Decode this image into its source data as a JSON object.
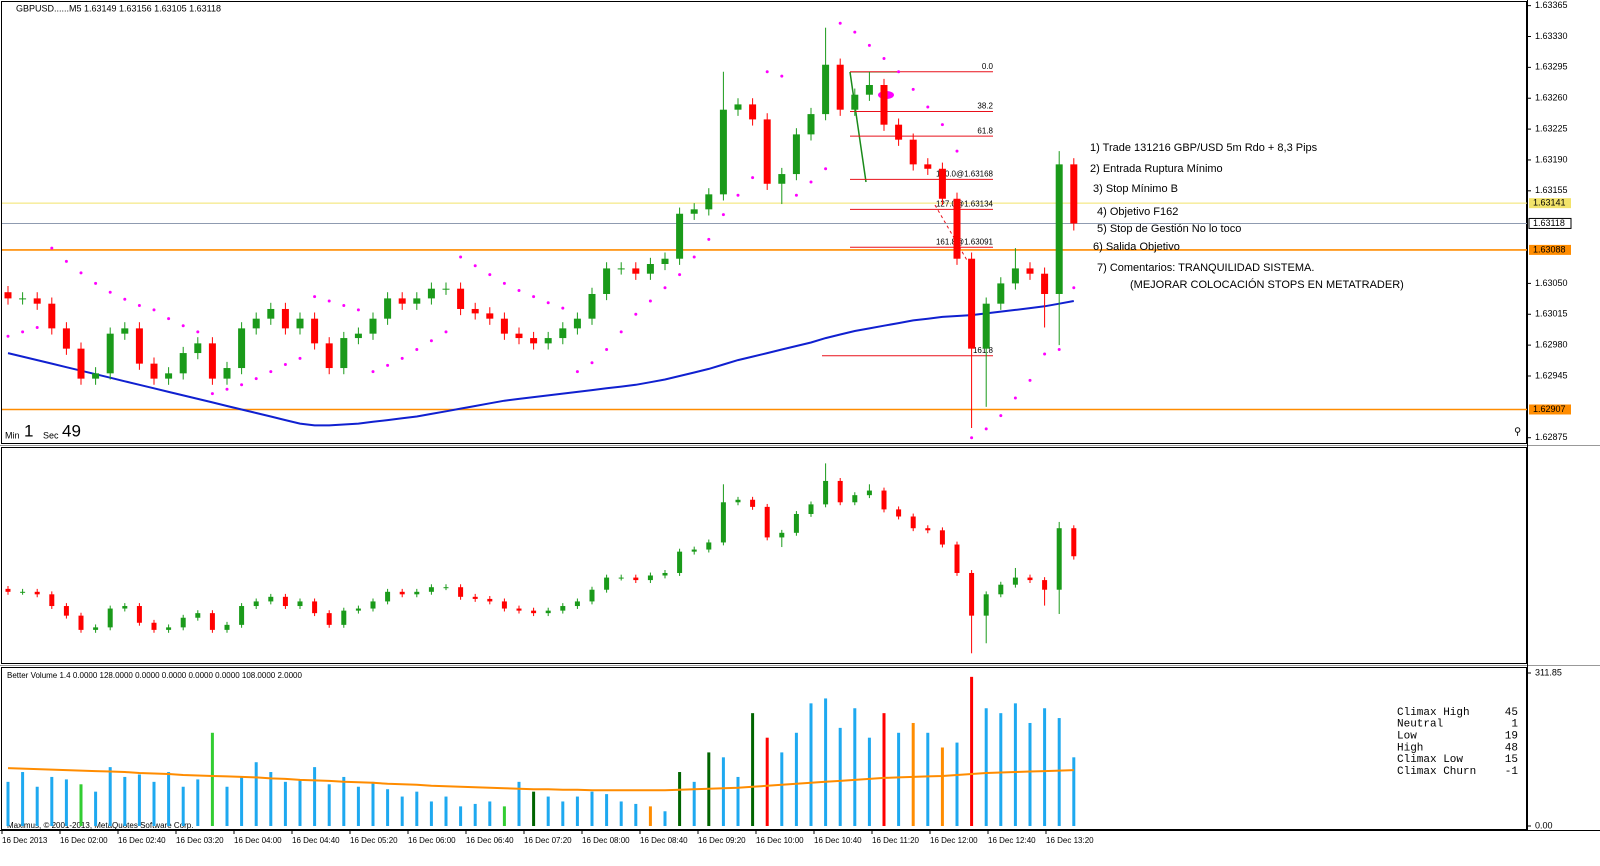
{
  "chart_data": {
    "type": "candlestick",
    "symbol_header": "GBPUSD......M5  1.63149 1.63156 1.63105 1.63118",
    "timer": {
      "min_label": "Min",
      "min": 1,
      "sec_label": "Sec",
      "sec": 49
    },
    "x_labels": [
      "16 Dec 2013",
      "16 Dec 02:00",
      "16 Dec 02:40",
      "16 Dec 03:20",
      "16 Dec 04:00",
      "16 Dec 04:40",
      "16 Dec 05:20",
      "16 Dec 06:00",
      "16 Dec 06:40",
      "16 Dec 07:20",
      "16 Dec 08:00",
      "16 Dec 08:40",
      "16 Dec 09:20",
      "16 Dec 10:00",
      "16 Dec 10:40",
      "16 Dec 11:20",
      "16 Dec 12:00",
      "16 Dec 12:40",
      "16 Dec 13:20"
    ],
    "ylim": [
      1.62869,
      1.63368
    ],
    "yticks": [
      1.63365,
      {
        "value": 1.6333,
        "label": "1.63330"
      },
      1.63295,
      {
        "value": 1.6326,
        "label": "1.63260"
      },
      1.63225,
      {
        "value": 1.6319,
        "label": "1.63190"
      },
      1.63155,
      {
        "value": 1.6305,
        "label": "1.63050"
      },
      1.63015,
      {
        "value": 1.6298,
        "label": "1.62980"
      },
      1.62945,
      1.62875
    ],
    "up_color": "#1a9a1a",
    "down_color": "#ff0000",
    "open": [
      1.6304,
      1.63033,
      1.63033,
      1.63027,
      1.62999,
      1.62976,
      1.62942,
      1.62948,
      1.62993,
      1.62999,
      1.62959,
      1.62942,
      1.62948,
      1.62971,
      1.62982,
      1.62942,
      1.62954,
      1.62999,
      1.6301,
      1.63021,
      1.62999,
      1.6301,
      1.62982,
      1.62954,
      1.62988,
      1.62993,
      1.6301,
      1.63033,
      1.63027,
      1.63033,
      1.63044,
      1.63044,
      1.63021,
      1.63016,
      1.6301,
      1.62993,
      1.62988,
      1.62982,
      1.62988,
      1.62999,
      1.6301,
      1.63038,
      1.63067,
      1.63067,
      1.63061,
      1.63072,
      1.63078,
      1.63129,
      1.63134,
      1.63151,
      1.63247,
      1.63253,
      1.63236,
      1.63163,
      1.63174,
      1.63219,
      1.63242,
      1.63298,
      1.63247,
      1.63264,
      1.63275,
      1.6323,
      1.63213,
      1.63185,
      1.6318,
      1.63146,
      1.63078,
      1.62976,
      1.63027,
      1.6305,
      1.63067,
      1.63061,
      1.63038,
      1.63185
    ],
    "high": [
      1.63047,
      1.6304,
      1.6304,
      1.63034,
      1.63006,
      1.62983,
      1.62955,
      1.63,
      1.63006,
      1.63006,
      1.62966,
      1.62955,
      1.62978,
      1.62989,
      1.62989,
      1.62961,
      1.63006,
      1.63017,
      1.63028,
      1.63028,
      1.63017,
      1.63017,
      1.62989,
      1.62995,
      1.63,
      1.63017,
      1.6304,
      1.6304,
      1.6304,
      1.63051,
      1.63051,
      1.63051,
      1.63028,
      1.63023,
      1.63017,
      1.63,
      1.62995,
      1.62995,
      1.63006,
      1.63017,
      1.63045,
      1.63074,
      1.63074,
      1.63074,
      1.63079,
      1.63085,
      1.63136,
      1.63141,
      1.63158,
      1.6329,
      1.6326,
      1.6326,
      1.63243,
      1.63181,
      1.63226,
      1.63249,
      1.6334,
      1.63305,
      1.63271,
      1.6329,
      1.63282,
      1.63237,
      1.6322,
      1.63192,
      1.63187,
      1.63153,
      1.63085,
      1.63034,
      1.63057,
      1.6309,
      1.63074,
      1.63068,
      1.632,
      1.63192
    ],
    "low": [
      1.63026,
      1.63026,
      1.6302,
      1.62992,
      1.62969,
      1.62935,
      1.62935,
      1.62941,
      1.62986,
      1.62952,
      1.62935,
      1.62935,
      1.62941,
      1.62964,
      1.62935,
      1.62935,
      1.62947,
      1.62992,
      1.63003,
      1.62992,
      1.62992,
      1.62975,
      1.62947,
      1.62947,
      1.62981,
      1.62986,
      1.63003,
      1.6302,
      1.6302,
      1.63026,
      1.63037,
      1.63014,
      1.63009,
      1.63003,
      1.62986,
      1.62981,
      1.62975,
      1.62975,
      1.62981,
      1.62992,
      1.63003,
      1.63031,
      1.6306,
      1.63054,
      1.63054,
      1.63065,
      1.63071,
      1.63122,
      1.63127,
      1.63144,
      1.6324,
      1.63229,
      1.63156,
      1.6314,
      1.63167,
      1.63212,
      1.63235,
      1.6324,
      1.6324,
      1.63257,
      1.63223,
      1.63206,
      1.63178,
      1.63173,
      1.63139,
      1.63071,
      1.62886,
      1.6291,
      1.6302,
      1.63043,
      1.63054,
      1.63,
      1.6298,
      1.6311
    ],
    "close": [
      1.63033,
      1.63033,
      1.63027,
      1.62999,
      1.62976,
      1.62942,
      1.62948,
      1.62993,
      1.62999,
      1.62959,
      1.62942,
      1.62948,
      1.62971,
      1.62982,
      1.62942,
      1.62954,
      1.62999,
      1.6301,
      1.63021,
      1.62999,
      1.6301,
      1.62982,
      1.62954,
      1.62988,
      1.62993,
      1.6301,
      1.63033,
      1.63027,
      1.63033,
      1.63044,
      1.63044,
      1.63021,
      1.63016,
      1.6301,
      1.62993,
      1.62988,
      1.62982,
      1.62988,
      1.62999,
      1.6301,
      1.63038,
      1.63067,
      1.63067,
      1.63061,
      1.63072,
      1.63078,
      1.63129,
      1.63134,
      1.63151,
      1.63247,
      1.63253,
      1.63236,
      1.63163,
      1.63174,
      1.63219,
      1.63242,
      1.63298,
      1.63247,
      1.63264,
      1.63275,
      1.6323,
      1.63213,
      1.63185,
      1.6318,
      1.63146,
      1.63078,
      1.62976,
      1.63027,
      1.6305,
      1.63067,
      1.63061,
      1.63038,
      1.63185,
      1.63118
    ],
    "ma": {
      "color": "#1020d0",
      "values": [
        1.62971,
        1.62967,
        1.62963,
        1.62959,
        1.62955,
        1.62951,
        1.62947,
        1.62943,
        1.62939,
        1.62935,
        1.62931,
        1.62927,
        1.62923,
        1.62919,
        1.62915,
        1.62911,
        1.62907,
        1.62903,
        1.62899,
        1.62895,
        1.62891,
        1.62889,
        1.62889,
        1.6289,
        1.62891,
        1.62893,
        1.62895,
        1.62897,
        1.62899,
        1.62902,
        1.62905,
        1.62908,
        1.62911,
        1.62914,
        1.62917,
        1.62919,
        1.62921,
        1.62923,
        1.62925,
        1.62927,
        1.62929,
        1.62931,
        1.62933,
        1.62935,
        1.62938,
        1.62941,
        1.62945,
        1.62949,
        1.62953,
        1.62958,
        1.62963,
        1.62967,
        1.62971,
        1.62975,
        1.62979,
        1.62983,
        1.62988,
        1.62992,
        1.62996,
        1.62999,
        1.63002,
        1.63005,
        1.63008,
        1.6301,
        1.63012,
        1.63013,
        1.63014,
        1.63016,
        1.63018,
        1.6302,
        1.63022,
        1.63024,
        1.63027,
        1.6303
      ]
    },
    "sar": {
      "color": "#ff00ff",
      "values": [
        1.6299,
        1.62995,
        1.63,
        1.6309,
        1.63075,
        1.63062,
        1.6305,
        1.6304,
        1.63032,
        1.63025,
        1.6302,
        1.6301,
        1.63002,
        1.62995,
        1.62925,
        1.6293,
        1.62935,
        1.62942,
        1.6295,
        1.62958,
        1.62965,
        1.63035,
        1.6303,
        1.63025,
        1.6302,
        1.6295,
        1.62957,
        1.62965,
        1.62975,
        1.62985,
        1.62995,
        1.6308,
        1.6307,
        1.6306,
        1.6305,
        1.63042,
        1.63035,
        1.63028,
        1.63022,
        1.6295,
        1.6296,
        1.62975,
        1.62995,
        1.63015,
        1.6303,
        1.63045,
        1.6306,
        1.6308,
        1.631,
        1.63128,
        1.6315,
        1.6317,
        1.6329,
        1.63285,
        1.6315,
        1.63165,
        1.6318,
        1.63345,
        1.63335,
        1.6332,
        1.63305,
        1.6329,
        1.6327,
        1.6325,
        1.6323,
        1.632,
        1.62875,
        1.62885,
        1.629,
        1.6292,
        1.6294,
        1.6297,
        1.62975,
        1.63045
      ]
    },
    "levels": [
      {
        "value": 1.63141,
        "color": "#f2e36a"
      },
      {
        "value": 1.63118,
        "color": "#8f9bb0"
      },
      {
        "value": 1.63088,
        "color": "#ff8c00"
      },
      {
        "value": 1.62907,
        "color": "#ff8c00"
      }
    ],
    "fib": {
      "color": "#e8101a",
      "lines": [
        {
          "label": "0.0",
          "price": 1.6329
        },
        {
          "label": "38.2",
          "price": 1.63245
        },
        {
          "label": "61.8",
          "price": 1.63217
        },
        {
          "label": "100.0@1.63168",
          "price": 1.63168
        },
        {
          "label": "127.0@1.63134",
          "price": 1.63134
        },
        {
          "label": "161.8@1.63091",
          "price": 1.63091
        },
        {
          "label": "161.8",
          "price": 1.62968
        }
      ]
    },
    "annotations": {
      "color": "#1428d8",
      "lines": [
        "1) Trade 131216 GBP/USD 5m Rdo + 8,3 Pips",
        "2) Entrada Ruptura Mínimo",
        "3) Stop Mínimo B",
        "4) Objetivo F162",
        "5) Stop de Gestión No lo toco",
        "6) Salida Objetivo",
        "7) Comentarios: TRANQUILIDAD SISTEMA.",
        "(MEJORAR COLOCACIÓN STOPS EN METATRADER)"
      ]
    },
    "panel2_ylim": [
      1.6287,
      1.6336
    ],
    "volume": {
      "title": "Better Volume 1.4 0.0000 128.0000 0.0000 0.0000 0.0000 0.0000 108.0000 2.0000",
      "ylim": [
        0,
        311.85
      ],
      "yticks": [
        311.85,
        {
          "value": 0,
          "label": "0.00"
        }
      ],
      "values": [
        90,
        110,
        80,
        100,
        95,
        85,
        70,
        120,
        100,
        105,
        90,
        110,
        80,
        95,
        190,
        80,
        100,
        130,
        110,
        90,
        95,
        120,
        85,
        100,
        80,
        90,
        75,
        60,
        70,
        50,
        60,
        40,
        45,
        50,
        40,
        90,
        70,
        60,
        50,
        60,
        70,
        65,
        50,
        45,
        40,
        30,
        110,
        90,
        150,
        140,
        100,
        230,
        180,
        150,
        190,
        250,
        260,
        200,
        240,
        180,
        230,
        190,
        210,
        190,
        160,
        170,
        304,
        240,
        230,
        250,
        210,
        240,
        220,
        140
      ],
      "colors": [
        "#1ea9f0",
        "#1ea9f0",
        "#1ea9f0",
        "#1ea9f0",
        "#1ea9f0",
        "#32cd32",
        "#1ea9f0",
        "#1ea9f0",
        "#1ea9f0",
        "#1ea9f0",
        "#1ea9f0",
        "#1ea9f0",
        "#1ea9f0",
        "#1ea9f0",
        "#32cd32",
        "#1ea9f0",
        "#1ea9f0",
        "#1ea9f0",
        "#1ea9f0",
        "#1ea9f0",
        "#1ea9f0",
        "#1ea9f0",
        "#1ea9f0",
        "#1ea9f0",
        "#1ea9f0",
        "#1ea9f0",
        "#1ea9f0",
        "#1ea9f0",
        "#1ea9f0",
        "#1ea9f0",
        "#1ea9f0",
        "#1ea9f0",
        "#1ea9f0",
        "#1ea9f0",
        "#32cd32",
        "#1ea9f0",
        "#006400",
        "#1ea9f0",
        "#1ea9f0",
        "#1ea9f0",
        "#1ea9f0",
        "#1ea9f0",
        "#1ea9f0",
        "#1ea9f0",
        "#ff8c00",
        "#1ea9f0",
        "#006400",
        "#1ea9f0",
        "#006400",
        "#1ea9f0",
        "#1ea9f0",
        "#006400",
        "#ff0000",
        "#1ea9f0",
        "#1ea9f0",
        "#1ea9f0",
        "#1ea9f0",
        "#1ea9f0",
        "#1ea9f0",
        "#1ea9f0",
        "#ff0000",
        "#1ea9f0",
        "#ff8c00",
        "#1ea9f0",
        "#ff8c00",
        "#1ea9f0",
        "#ff0000",
        "#1ea9f0",
        "#1ea9f0",
        "#1ea9f0",
        "#1ea9f0",
        "#1ea9f0",
        "#1ea9f0",
        "#1ea9f0"
      ],
      "ma": {
        "color": "#ff8c00",
        "values": [
          118,
          117,
          116,
          115,
          114,
          113,
          112,
          111,
          110,
          108,
          107,
          106,
          104,
          103,
          102,
          101,
          100,
          99,
          97,
          96,
          94,
          93,
          92,
          90,
          89,
          88,
          86,
          85,
          84,
          82,
          81,
          80,
          79,
          78,
          77,
          76,
          75,
          75,
          74,
          74,
          73,
          73,
          73,
          73,
          73,
          73,
          74,
          75,
          76,
          77,
          78,
          80,
          82,
          84,
          86,
          88,
          90,
          92,
          94,
          96,
          98,
          99,
          100,
          101,
          102,
          104,
          106,
          108,
          109,
          110,
          111,
          112,
          113,
          114
        ]
      },
      "legend": [
        {
          "name": "Climax High",
          "value": 45,
          "color": "#1a8a1a"
        },
        {
          "name": "Neutral",
          "value": 1,
          "color": "#1ea9f0"
        },
        {
          "name": "Low",
          "value": 19,
          "color": "#ff8c00"
        },
        {
          "name": "High",
          "value": 48,
          "color": "#32cd32"
        },
        {
          "name": "Climax Low",
          "value": 15,
          "color": "#ff0000"
        },
        {
          "name": "Climax Churn",
          "value": -1,
          "color": "#ff00ff"
        }
      ]
    },
    "copyright": "Maximus, © 2001-2013, MetaQuotes Software Corp."
  }
}
